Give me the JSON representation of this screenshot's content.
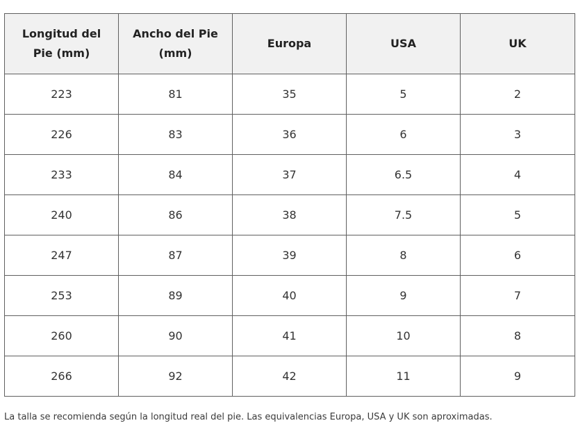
{
  "table": {
    "headers": [
      [
        "Longitud del",
        "Pie (mm)"
      ],
      [
        "Ancho del Pie",
        "(mm)"
      ],
      [
        "Europa"
      ],
      [
        "USA"
      ],
      [
        "UK"
      ]
    ],
    "rows": [
      [
        "223",
        "81",
        "35",
        "5",
        "2"
      ],
      [
        "226",
        "83",
        "36",
        "6",
        "3"
      ],
      [
        "233",
        "84",
        "37",
        "6.5",
        "4"
      ],
      [
        "240",
        "86",
        "38",
        "7.5",
        "5"
      ],
      [
        "247",
        "87",
        "39",
        "8",
        "6"
      ],
      [
        "253",
        "89",
        "40",
        "9",
        "7"
      ],
      [
        "260",
        "90",
        "41",
        "10",
        "8"
      ],
      [
        "266",
        "92",
        "42",
        "11",
        "9"
      ]
    ]
  },
  "footnote": "La talla se recomienda según la longitud real del pie. Las equivalencias Europa, USA y UK son aproximadas.",
  "colors": {
    "header_background": "#f1f1f1",
    "border": "#5f5f5f",
    "text": "#333333"
  }
}
